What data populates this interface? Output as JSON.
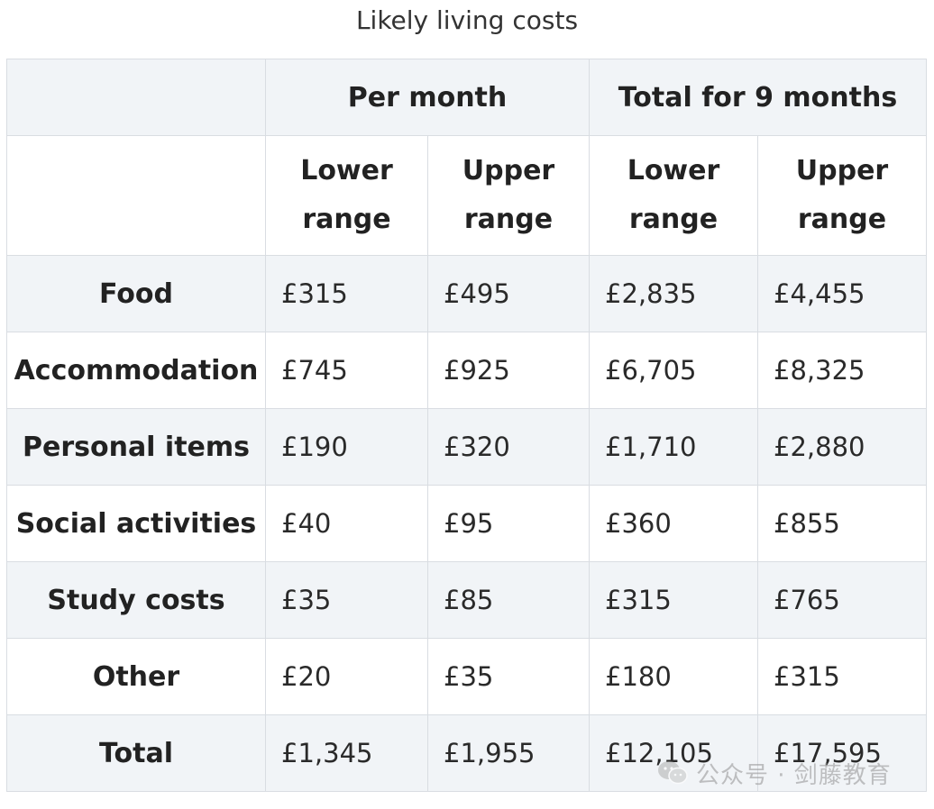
{
  "caption": "Likely living costs",
  "header": {
    "groups": [
      "Per month",
      "Total for 9 months"
    ],
    "sub": [
      "Lower\nrange",
      "Upper\nrange",
      "Lower\nrange",
      "Upper\nrange"
    ]
  },
  "rows": [
    {
      "label": "Food",
      "values": [
        "£315",
        "£495",
        "£2,835",
        "£4,455"
      ]
    },
    {
      "label": "Accommodation",
      "values": [
        "£745",
        "£925",
        "£6,705",
        "£8,325"
      ]
    },
    {
      "label": "Personal items",
      "values": [
        "£190",
        "£320",
        "£1,710",
        "£2,880"
      ]
    },
    {
      "label": "Social activities",
      "values": [
        "£40",
        "£95",
        "£360",
        "£855"
      ]
    },
    {
      "label": "Study costs",
      "values": [
        "£35",
        "£85",
        "£315",
        "£765"
      ]
    },
    {
      "label": "Other",
      "values": [
        "£20",
        "£35",
        "£180",
        "£315"
      ]
    },
    {
      "label": "Total",
      "values": [
        "£1,345",
        "£1,955",
        "£12,105",
        "£17,595"
      ]
    }
  ],
  "watermark": {
    "text": "公众号 · 剑藤教育",
    "icon": "wechat-icon"
  }
}
